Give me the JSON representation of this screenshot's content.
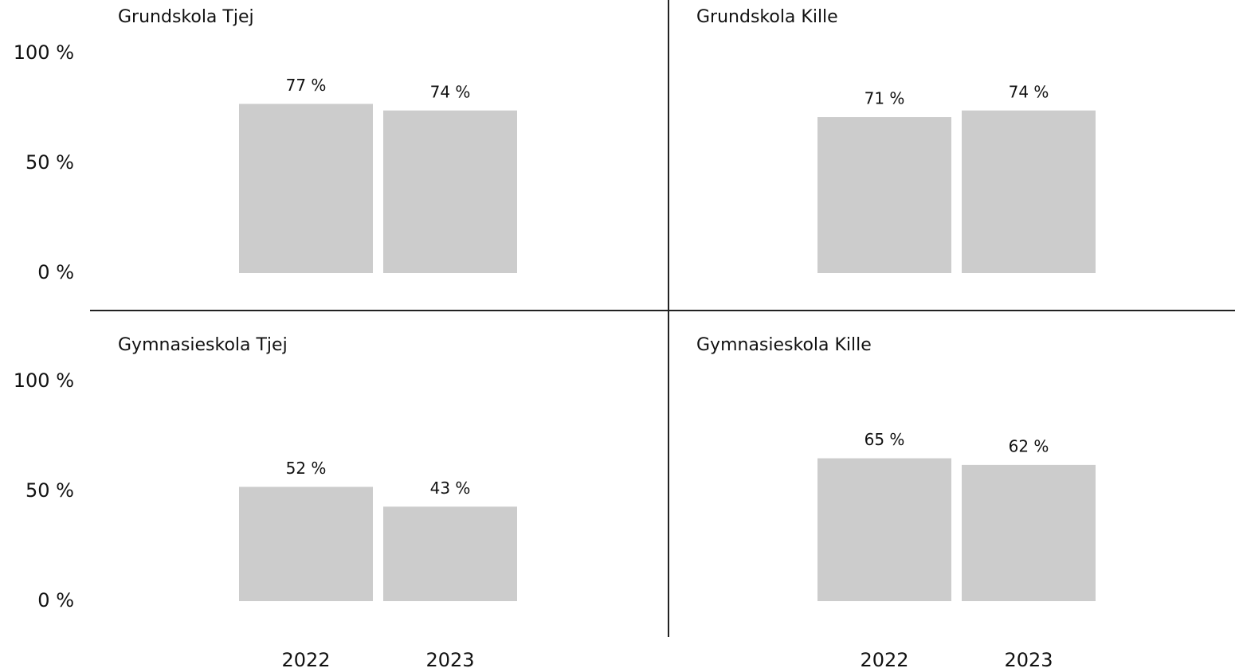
{
  "chart_data": [
    {
      "type": "bar",
      "title": "Grundskola Tjej",
      "categories": [
        null,
        null
      ],
      "values": [
        77,
        74
      ],
      "value_labels": [
        "77 %",
        "74 %"
      ],
      "color": "#cccccc",
      "ylim": [
        0,
        100
      ],
      "yticks": [
        {
          "value": 0,
          "label": "0 %"
        },
        {
          "value": 50,
          "label": "50 %"
        },
        {
          "value": 100,
          "label": "100 %"
        }
      ]
    },
    {
      "type": "bar",
      "title": "Grundskola Kille",
      "categories": [
        null,
        null
      ],
      "values": [
        71,
        74
      ],
      "value_labels": [
        "71 %",
        "74 %"
      ],
      "color": "#cccccc",
      "ylim": [
        0,
        100
      ]
    },
    {
      "type": "bar",
      "title": "Gymnasieskola Tjej",
      "categories": [
        "2022",
        "2023"
      ],
      "values": [
        52,
        43
      ],
      "value_labels": [
        "52 %",
        "43 %"
      ],
      "color": "#cccccc",
      "ylim": [
        0,
        100
      ],
      "yticks": [
        {
          "value": 0,
          "label": "0 %"
        },
        {
          "value": 50,
          "label": "50 %"
        },
        {
          "value": 100,
          "label": "100 %"
        }
      ]
    },
    {
      "type": "bar",
      "title": "Gymnasieskola Kille",
      "categories": [
        "2022",
        "2023"
      ],
      "values": [
        65,
        62
      ],
      "value_labels": [
        "65 %",
        "62 %"
      ],
      "color": "#cccccc",
      "ylim": [
        0,
        100
      ]
    }
  ]
}
